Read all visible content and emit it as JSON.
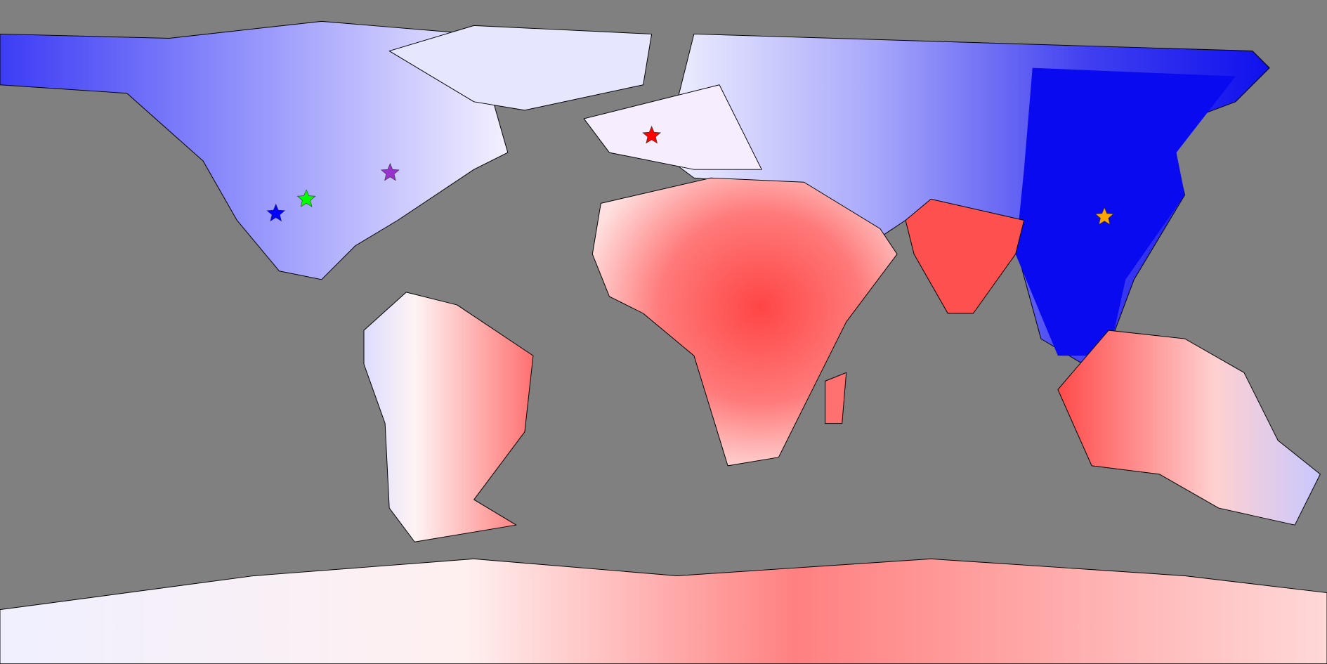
{
  "markers": [
    {
      "color": "#0000ff"
    },
    {
      "color": "#00ff00"
    },
    {
      "color": "#9932cc"
    },
    {
      "color": "#ff0000"
    },
    {
      "color": "#ffa500"
    }
  ]
}
